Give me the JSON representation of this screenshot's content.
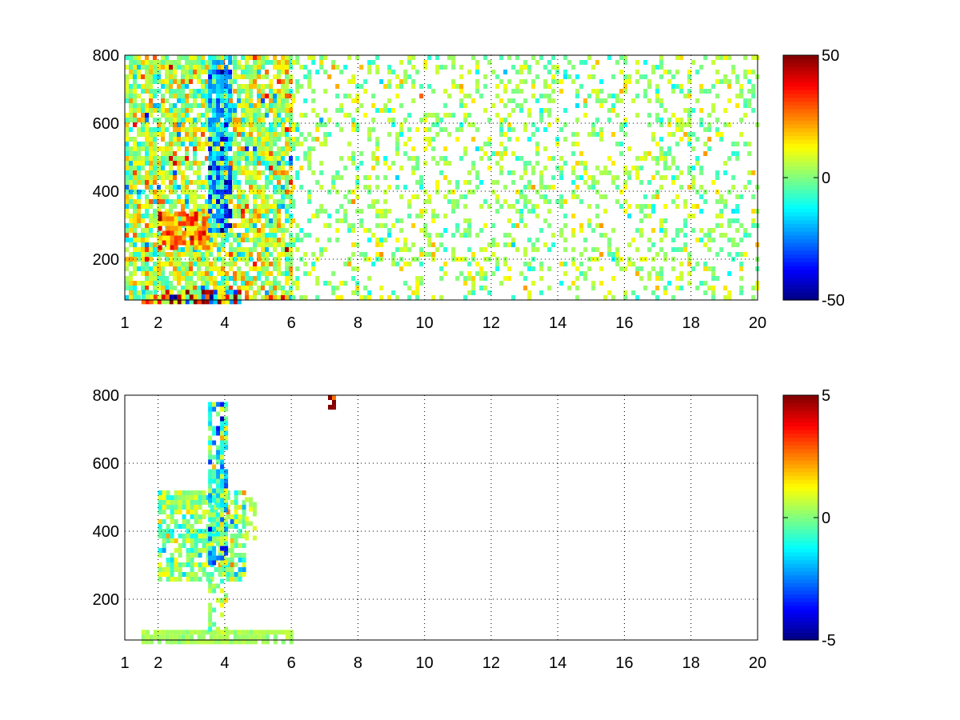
{
  "chart_data": [
    {
      "type": "heatmap",
      "title": "",
      "xlabel": "",
      "ylabel": "",
      "xlim": [
        1,
        20
      ],
      "ylim": [
        80,
        800
      ],
      "xticks": [
        1,
        2,
        4,
        6,
        8,
        10,
        12,
        14,
        16,
        18,
        20
      ],
      "yticks": [
        200,
        400,
        600,
        800
      ],
      "grid": true,
      "colormap": "jet",
      "clim": [
        -50,
        50
      ],
      "colorbar": {
        "position": "right",
        "ticks": [
          -50,
          0,
          50
        ]
      },
      "regions": [
        {
          "x": [
            1.0,
            6.0
          ],
          "y": [
            80,
            800
          ],
          "mean": 5,
          "spread": 12,
          "density": 0.8
        },
        {
          "x": [
            2.0,
            3.5
          ],
          "y": [
            240,
            340
          ],
          "mean": 25,
          "spread": 10,
          "density": 0.9
        },
        {
          "x": [
            3.5,
            4.2
          ],
          "y": [
            280,
            800
          ],
          "mean": -22,
          "spread": 12,
          "density": 0.85
        },
        {
          "x": [
            1.5,
            4.5
          ],
          "y": [
            80,
            110
          ],
          "mean": 10,
          "spread": 30,
          "density": 0.95
        },
        {
          "x": [
            6.0,
            20.0
          ],
          "y": [
            80,
            800
          ],
          "mean": 3,
          "spread": 7,
          "density": 0.25
        }
      ]
    },
    {
      "type": "heatmap",
      "title": "",
      "xlabel": "",
      "ylabel": "",
      "xlim": [
        1,
        20
      ],
      "ylim": [
        80,
        800
      ],
      "xticks": [
        1,
        2,
        4,
        6,
        8,
        10,
        12,
        14,
        16,
        18,
        20
      ],
      "yticks": [
        200,
        400,
        600,
        800
      ],
      "grid": true,
      "colormap": "jet",
      "clim": [
        -5,
        5
      ],
      "colorbar": {
        "position": "right",
        "ticks": [
          -5,
          0,
          5
        ]
      },
      "regions": [
        {
          "x": [
            2.0,
            4.6
          ],
          "y": [
            260,
            520
          ],
          "mean": 0,
          "spread": 0.9,
          "density": 0.7
        },
        {
          "x": [
            3.5,
            4.0
          ],
          "y": [
            300,
            780
          ],
          "mean": -1,
          "spread": 1.4,
          "density": 0.75
        },
        {
          "x": [
            1.5,
            6.0
          ],
          "y": [
            80,
            110
          ],
          "mean": 0.4,
          "spread": 0.2,
          "density": 0.9
        },
        {
          "x": [
            3.5,
            4.0
          ],
          "y": [
            110,
            260
          ],
          "mean": 0.2,
          "spread": 0.6,
          "density": 0.4
        },
        {
          "x": [
            4.6,
            4.9
          ],
          "y": [
            380,
            500
          ],
          "mean": 0.8,
          "spread": 0.3,
          "density": 0.5
        },
        {
          "x": [
            7.1,
            7.4
          ],
          "y": [
            760,
            800
          ],
          "mean": 3,
          "spread": 3,
          "density": 0.6
        }
      ]
    }
  ]
}
